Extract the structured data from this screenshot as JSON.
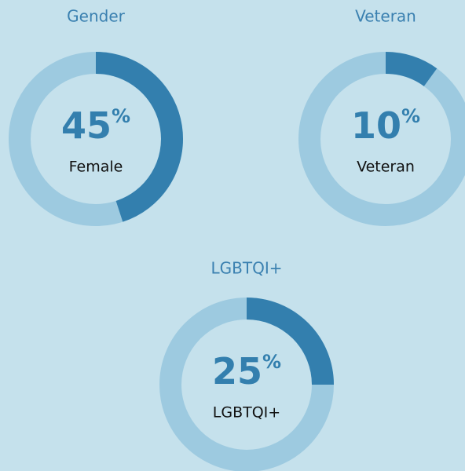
{
  "chart_data": [
    {
      "type": "donut",
      "title": "Gender",
      "categories": [
        "Female"
      ],
      "values": [
        45
      ],
      "unit": "%",
      "color": "#337fae",
      "track_color": "#9dcae0"
    },
    {
      "type": "donut",
      "title": "Veteran",
      "categories": [
        "Veteran"
      ],
      "values": [
        10
      ],
      "unit": "%",
      "color": "#337fae",
      "track_color": "#9dcae0"
    },
    {
      "type": "donut",
      "title": "LGBTQI+",
      "categories": [
        "LGBTQI+"
      ],
      "values": [
        25
      ],
      "unit": "%",
      "color": "#337fae",
      "track_color": "#9dcae0"
    }
  ]
}
